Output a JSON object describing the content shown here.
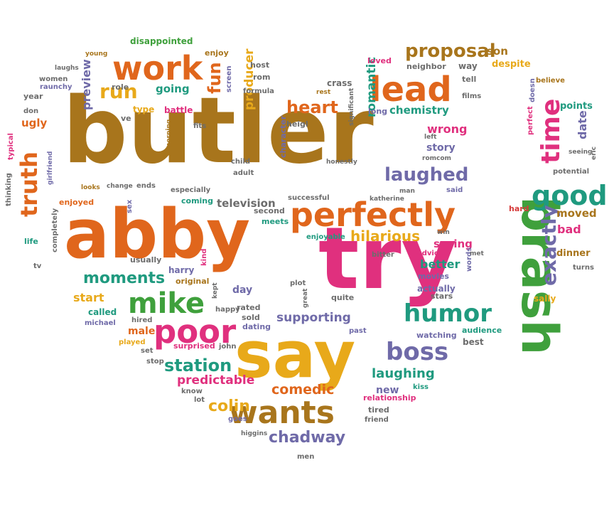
{
  "colors": {
    "olive": "#a8751c",
    "orange": "#e0661c",
    "magenta": "#e0307e",
    "gold": "#e8a91a",
    "green": "#3fa03c",
    "teal": "#1f9a7f",
    "purple": "#6f6aa8",
    "red": "#d63a3a",
    "gray": "#6c6c6c"
  },
  "words": [
    {
      "text": "butler",
      "color": "olive"
    },
    {
      "text": "brash",
      "color": "green"
    },
    {
      "text": "try",
      "color": "magenta"
    },
    {
      "text": "abby",
      "color": "orange"
    },
    {
      "text": "say",
      "color": "gold"
    },
    {
      "text": "perfectly",
      "color": "orange"
    },
    {
      "text": "lead",
      "color": "orange"
    },
    {
      "text": "work",
      "color": "orange"
    },
    {
      "text": "good",
      "color": "teal"
    },
    {
      "text": "poor",
      "color": "magenta"
    },
    {
      "text": "wants",
      "color": "olive"
    },
    {
      "text": "mike",
      "color": "green"
    },
    {
      "text": "humor",
      "color": "teal"
    },
    {
      "text": "boss",
      "color": "purple"
    },
    {
      "text": "time",
      "color": "magenta"
    },
    {
      "text": "truth",
      "color": "orange"
    },
    {
      "text": "exactly",
      "color": "purple"
    },
    {
      "text": "proposal",
      "color": "olive"
    },
    {
      "text": "laughed",
      "color": "purple"
    },
    {
      "text": "heart",
      "color": "orange"
    },
    {
      "text": "run",
      "color": "gold"
    },
    {
      "text": "fun",
      "color": "orange"
    },
    {
      "text": "station",
      "color": "teal"
    },
    {
      "text": "moments",
      "color": "teal"
    },
    {
      "text": "hilarious",
      "color": "gold"
    },
    {
      "text": "chadway",
      "color": "purple"
    },
    {
      "text": "colin",
      "color": "gold"
    },
    {
      "text": "comedic",
      "color": "orange"
    },
    {
      "text": "laughing",
      "color": "teal"
    },
    {
      "text": "predictable",
      "color": "magenta"
    },
    {
      "text": "supporting",
      "color": "purple"
    },
    {
      "text": "chemistry",
      "color": "teal"
    },
    {
      "text": "romantic",
      "color": "teal"
    },
    {
      "text": "producer",
      "color": "gold"
    },
    {
      "text": "television",
      "color": "gray"
    },
    {
      "text": "going",
      "color": "teal"
    },
    {
      "text": "preview",
      "color": "purple"
    },
    {
      "text": "ugly",
      "color": "orange"
    },
    {
      "text": "saying",
      "color": "magenta"
    },
    {
      "text": "better",
      "color": "teal"
    },
    {
      "text": "wrong",
      "color": "magenta"
    },
    {
      "text": "story",
      "color": "purple"
    },
    {
      "text": "moved",
      "color": "olive"
    },
    {
      "text": "bad",
      "color": "magenta"
    },
    {
      "text": "date",
      "color": "purple"
    },
    {
      "text": "day",
      "color": "purple"
    },
    {
      "text": "new",
      "color": "purple"
    },
    {
      "text": "start",
      "color": "gold"
    },
    {
      "text": "male",
      "color": "orange"
    },
    {
      "text": "son",
      "color": "olive"
    },
    {
      "text": "despite",
      "color": "gold"
    },
    {
      "text": "dinner",
      "color": "olive"
    },
    {
      "text": "disappointed",
      "color": "green"
    },
    {
      "text": "enjoy",
      "color": "olive"
    },
    {
      "text": "host",
      "color": "gray"
    },
    {
      "text": "rom",
      "color": "gray"
    },
    {
      "text": "formula",
      "color": "gray"
    },
    {
      "text": "laughs",
      "color": "gray"
    },
    {
      "text": "young",
      "color": "olive"
    },
    {
      "text": "women",
      "color": "gray"
    },
    {
      "text": "raunchy",
      "color": "purple"
    },
    {
      "text": "year",
      "color": "gray"
    },
    {
      "text": "don",
      "color": "gray"
    },
    {
      "text": "role",
      "color": "gray"
    },
    {
      "text": "type",
      "color": "gold"
    },
    {
      "text": "battle",
      "color": "magenta"
    },
    {
      "text": "ve",
      "color": "gray"
    },
    {
      "text": "screen",
      "color": "purple"
    },
    {
      "text": "loved",
      "color": "magenta"
    },
    {
      "text": "neighbor",
      "color": "gray"
    },
    {
      "text": "way",
      "color": "gray"
    },
    {
      "text": "tell",
      "color": "gray"
    },
    {
      "text": "doesn",
      "color": "purple"
    },
    {
      "text": "believe",
      "color": "olive"
    },
    {
      "text": "films",
      "color": "gray"
    },
    {
      "text": "points",
      "color": "teal"
    },
    {
      "text": "perfect",
      "color": "magenta"
    },
    {
      "text": "crass",
      "color": "gray"
    },
    {
      "text": "rest",
      "color": "olive"
    },
    {
      "text": "long",
      "color": "purple"
    },
    {
      "text": "heigl",
      "color": "gray"
    },
    {
      "text": "significant",
      "color": "gray"
    },
    {
      "text": "fits",
      "color": "gray"
    },
    {
      "text": "morning",
      "color": "olive"
    },
    {
      "text": "character",
      "color": "purple"
    },
    {
      "text": "typical",
      "color": "magenta"
    },
    {
      "text": "girlfriend",
      "color": "purple"
    },
    {
      "text": "thinking",
      "color": "gray"
    },
    {
      "text": "life",
      "color": "teal"
    },
    {
      "text": "completely",
      "color": "gray"
    },
    {
      "text": "tv",
      "color": "gray"
    },
    {
      "text": "enjoyed",
      "color": "orange"
    },
    {
      "text": "looks",
      "color": "olive"
    },
    {
      "text": "change",
      "color": "gray"
    },
    {
      "text": "ends",
      "color": "gray"
    },
    {
      "text": "sex",
      "color": "purple"
    },
    {
      "text": "especially",
      "color": "gray"
    },
    {
      "text": "coming",
      "color": "teal"
    },
    {
      "text": "child",
      "color": "gray"
    },
    {
      "text": "adult",
      "color": "gray"
    },
    {
      "text": "honestly",
      "color": "gray"
    },
    {
      "text": "successful",
      "color": "gray"
    },
    {
      "text": "katherine",
      "color": "gray"
    },
    {
      "text": "man",
      "color": "gray"
    },
    {
      "text": "said",
      "color": "purple"
    },
    {
      "text": "left",
      "color": "gray"
    },
    {
      "text": "romcom",
      "color": "gray"
    },
    {
      "text": "seeing",
      "color": "gray"
    },
    {
      "text": "eric",
      "color": "gray"
    },
    {
      "text": "potential",
      "color": "gray"
    },
    {
      "text": "hard",
      "color": "red"
    },
    {
      "text": "second",
      "color": "gray"
    },
    {
      "text": "meets",
      "color": "teal"
    },
    {
      "text": "enjoyable",
      "color": "teal"
    },
    {
      "text": "win",
      "color": "gray"
    },
    {
      "text": "usually",
      "color": "gray"
    },
    {
      "text": "kind",
      "color": "magenta"
    },
    {
      "text": "harry",
      "color": "purple"
    },
    {
      "text": "original",
      "color": "olive"
    },
    {
      "text": "kept",
      "color": "gray"
    },
    {
      "text": "happy",
      "color": "gray"
    },
    {
      "text": "rated",
      "color": "gray"
    },
    {
      "text": "sold",
      "color": "gray"
    },
    {
      "text": "plot",
      "color": "gray"
    },
    {
      "text": "great",
      "color": "gray"
    },
    {
      "text": "quite",
      "color": "gray"
    },
    {
      "text": "bitter",
      "color": "gray"
    },
    {
      "text": "advice",
      "color": "magenta"
    },
    {
      "text": "words",
      "color": "purple"
    },
    {
      "text": "met",
      "color": "gray"
    },
    {
      "text": "movies",
      "color": "purple"
    },
    {
      "text": "turns",
      "color": "gray"
    },
    {
      "text": "actually",
      "color": "purple"
    },
    {
      "text": "stars",
      "color": "gray"
    },
    {
      "text": "sally",
      "color": "gold"
    },
    {
      "text": "called",
      "color": "teal"
    },
    {
      "text": "hired",
      "color": "gray"
    },
    {
      "text": "michael",
      "color": "purple"
    },
    {
      "text": "played",
      "color": "gold"
    },
    {
      "text": "dating",
      "color": "purple"
    },
    {
      "text": "past",
      "color": "purple"
    },
    {
      "text": "watching",
      "color": "purple"
    },
    {
      "text": "audience",
      "color": "teal"
    },
    {
      "text": "best",
      "color": "gray"
    },
    {
      "text": "surprised",
      "color": "magenta"
    },
    {
      "text": "john",
      "color": "gray"
    },
    {
      "text": "set",
      "color": "gray"
    },
    {
      "text": "stop",
      "color": "gray"
    },
    {
      "text": "know",
      "color": "gray"
    },
    {
      "text": "lot",
      "color": "gray"
    },
    {
      "text": "kiss",
      "color": "teal"
    },
    {
      "text": "relationship",
      "color": "magenta"
    },
    {
      "text": "tired",
      "color": "gray"
    },
    {
      "text": "friend",
      "color": "gray"
    },
    {
      "text": "goes",
      "color": "purple"
    },
    {
      "text": "higgins",
      "color": "gray"
    },
    {
      "text": "men",
      "color": "gray"
    }
  ]
}
